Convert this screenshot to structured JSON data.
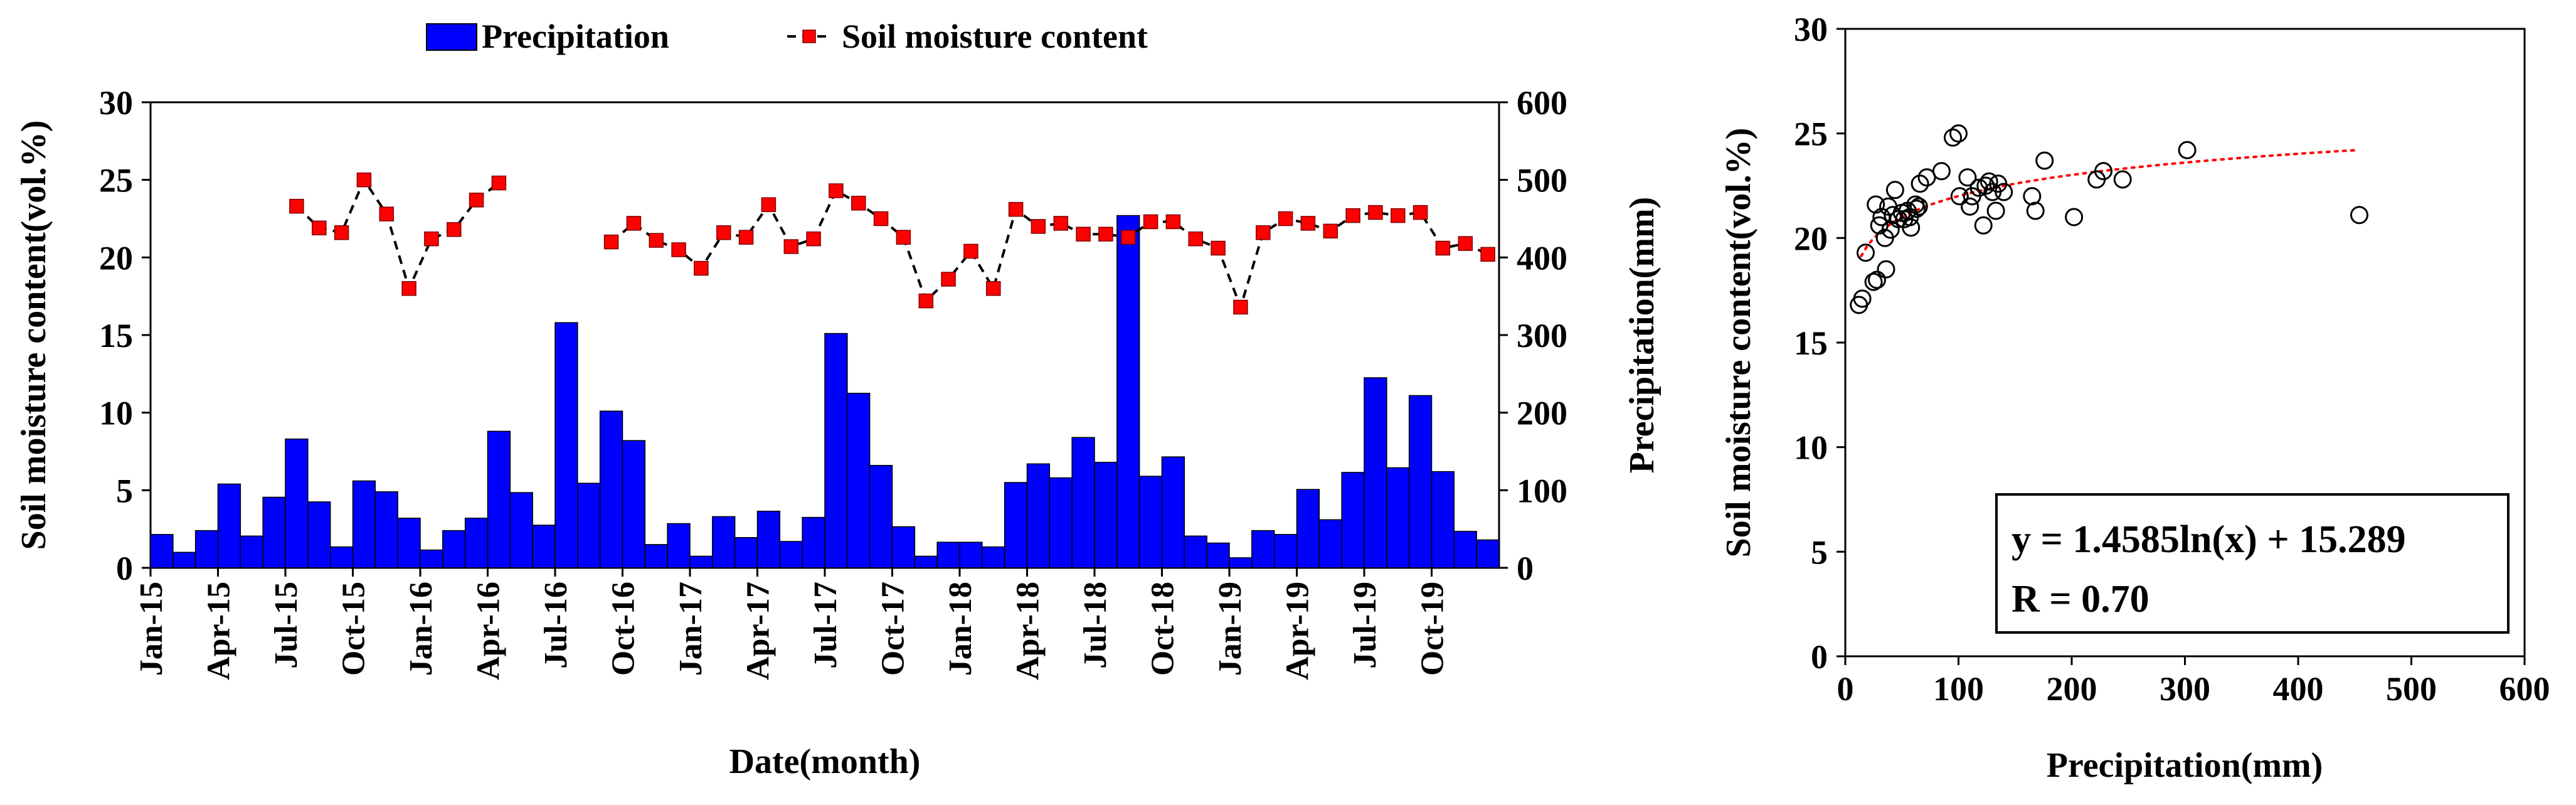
{
  "chart_data": [
    {
      "type": "bar+line",
      "legend": {
        "placement": "top",
        "bar_label": "Precipitation",
        "line_label": "Soil moisture content"
      },
      "xlabel": "Date(month)",
      "ylabel_left": "Soil moisture content(vol.%)",
      "ylabel_right": "Precipitation(mm)",
      "ylim_left": [
        0,
        30
      ],
      "yticks_left": [
        "0",
        "5",
        "10",
        "15",
        "20",
        "25",
        "30"
      ],
      "ylim_right": [
        0,
        600
      ],
      "yticks_right": [
        "0",
        "100",
        "200",
        "300",
        "400",
        "500",
        "600"
      ],
      "x_tick_labels": [
        "Jan-15",
        "Apr-15",
        "Jul-15",
        "Oct-15",
        "Jan-16",
        "Apr-16",
        "Jul-16",
        "Oct-16",
        "Jan-17",
        "Apr-17",
        "Jul-17",
        "Oct-17",
        "Jan-18",
        "Apr-18",
        "Jul-18",
        "Oct-18",
        "Jan-19",
        "Apr-19",
        "Jul-19",
        "Oct-19"
      ],
      "months_count": 60,
      "precipitation_mm": [
        43,
        20,
        48,
        108,
        41,
        91,
        166,
        85,
        27,
        112,
        98,
        64,
        23,
        48,
        64,
        176,
        97,
        55,
        316,
        109,
        202,
        164,
        30,
        57,
        15,
        66,
        39,
        73,
        34,
        65,
        302,
        225,
        132,
        53,
        15,
        33,
        33,
        27,
        110,
        134,
        116,
        168,
        136,
        454,
        118,
        143,
        41,
        32,
        13,
        48,
        43,
        101,
        62,
        123,
        245,
        129,
        222,
        124,
        47,
        36
      ],
      "soil_moisture_vol_pct": [
        null,
        null,
        null,
        null,
        null,
        null,
        23.3,
        21.9,
        21.6,
        25.0,
        22.8,
        18.0,
        21.2,
        21.8,
        23.7,
        24.8,
        null,
        null,
        null,
        null,
        21.0,
        22.2,
        21.1,
        20.5,
        19.3,
        21.6,
        21.3,
        23.4,
        20.7,
        21.2,
        24.3,
        23.5,
        22.5,
        21.3,
        17.2,
        18.6,
        20.4,
        18.0,
        23.1,
        22.0,
        22.2,
        21.5,
        21.5,
        21.3,
        22.3,
        22.3,
        21.2,
        20.6,
        16.8,
        21.6,
        22.5,
        22.2,
        21.7,
        22.7,
        22.9,
        22.7,
        22.9,
        20.6,
        20.9,
        20.2
      ],
      "bar_color": "#0000ff",
      "marker_color": "#ff0000"
    },
    {
      "type": "scatter",
      "xlabel": "Precipitation(mm)",
      "ylabel": "Soil moisture content(vol.%)",
      "xlim": [
        0,
        600
      ],
      "xticks": [
        "0",
        "100",
        "200",
        "300",
        "400",
        "500",
        "600"
      ],
      "ylim": [
        0,
        30
      ],
      "yticks": [
        "0",
        "5",
        "10",
        "15",
        "20",
        "25",
        "30"
      ],
      "points": [
        [
          12,
          16.8
        ],
        [
          15,
          17.1
        ],
        [
          18,
          19.3
        ],
        [
          25,
          17.9
        ],
        [
          28,
          18.0
        ],
        [
          27,
          21.6
        ],
        [
          30,
          20.6
        ],
        [
          32,
          21.0
        ],
        [
          35,
          20.0
        ],
        [
          36,
          18.5
        ],
        [
          38,
          21.5
        ],
        [
          40,
          20.4
        ],
        [
          42,
          21.1
        ],
        [
          44,
          22.3
        ],
        [
          47,
          20.9
        ],
        [
          50,
          21.2
        ],
        [
          52,
          20.9
        ],
        [
          55,
          21.3
        ],
        [
          57,
          21.0
        ],
        [
          58,
          20.5
        ],
        [
          62,
          21.6
        ],
        [
          63,
          21.4
        ],
        [
          65,
          21.5
        ],
        [
          66,
          22.6
        ],
        [
          72,
          22.9
        ],
        [
          85,
          23.2
        ],
        [
          95,
          24.8
        ],
        [
          100,
          25.0
        ],
        [
          101,
          22.0
        ],
        [
          108,
          22.9
        ],
        [
          110,
          21.5
        ],
        [
          112,
          22.0
        ],
        [
          118,
          22.4
        ],
        [
          122,
          20.6
        ],
        [
          124,
          22.5
        ],
        [
          127,
          22.7
        ],
        [
          130,
          22.2
        ],
        [
          133,
          21.3
        ],
        [
          135,
          22.6
        ],
        [
          140,
          22.2
        ],
        [
          165,
          22.0
        ],
        [
          168,
          21.3
        ],
        [
          176,
          23.7
        ],
        [
          202,
          21.0
        ],
        [
          222,
          22.8
        ],
        [
          228,
          23.2
        ],
        [
          245,
          22.8
        ],
        [
          302,
          24.2
        ],
        [
          454,
          21.1
        ]
      ],
      "fit": {
        "a": 1.4585,
        "b": 15.289,
        "style": "dotted",
        "color": "#ff0000",
        "x_range": [
          14,
          454
        ]
      },
      "equation_text": "y = 1.4585ln(x) + 15.289",
      "r_text": "R = 0.70"
    }
  ]
}
